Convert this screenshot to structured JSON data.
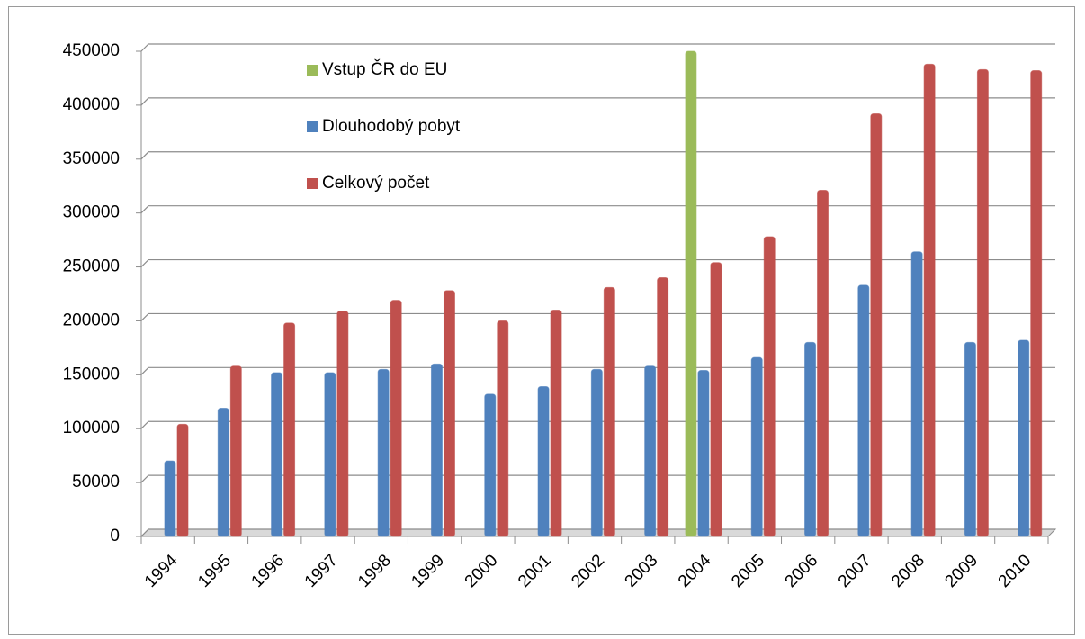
{
  "chart_data": {
    "type": "bar",
    "categories": [
      "1994",
      "1995",
      "1996",
      "1997",
      "1998",
      "1999",
      "2000",
      "2001",
      "2002",
      "2003",
      "2004",
      "2005",
      "2006",
      "2007",
      "2008",
      "2009",
      "2010"
    ],
    "series": [
      {
        "name": "Vstup ČR do EU",
        "color": "#9bbb59",
        "values": [
          null,
          null,
          null,
          null,
          null,
          null,
          null,
          null,
          null,
          null,
          450000,
          null,
          null,
          null,
          null,
          null,
          null
        ]
      },
      {
        "name": "Dlouhodobý pobyt",
        "color": "#4f81bd",
        "values": [
          70000,
          119000,
          152000,
          152000,
          155000,
          160000,
          132000,
          139000,
          155000,
          158000,
          154000,
          166000,
          180000,
          233000,
          264000,
          180000,
          182000
        ]
      },
      {
        "name": "Celkový počet",
        "color": "#c0504d",
        "values": [
          104000,
          158000,
          198000,
          209000,
          219000,
          228000,
          200000,
          210000,
          231000,
          240000,
          254000,
          278000,
          321000,
          392000,
          438000,
          433000,
          432000
        ]
      }
    ],
    "ylim": [
      0,
      450000
    ],
    "yticks": [
      0,
      50000,
      100000,
      150000,
      200000,
      250000,
      300000,
      350000,
      400000,
      450000
    ],
    "grid": true,
    "legend": "top-left"
  }
}
